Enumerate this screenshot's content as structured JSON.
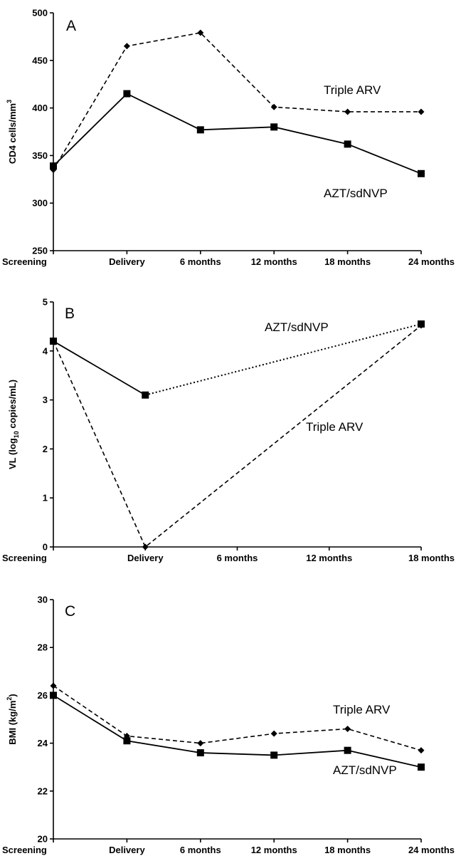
{
  "chart_data": [
    {
      "type": "line",
      "panel_label": "A",
      "ylabel": "CD4 cells/mm",
      "ylabel_sup": "3",
      "xlabel": "",
      "categories": [
        "Screening",
        "Delivery",
        "6 months",
        "12 months",
        "18 months",
        "24 months"
      ],
      "ylim": [
        250,
        500
      ],
      "yticks": [
        250,
        300,
        350,
        400,
        450,
        500
      ],
      "grid": false,
      "series": [
        {
          "name": "Triple ARV",
          "marker": "diamond",
          "line_style": "dashed",
          "values": [
            335,
            465,
            479,
            401,
            396,
            396
          ]
        },
        {
          "name": "AZT/sdNVP",
          "marker": "square",
          "line_style": "solid",
          "values": [
            339,
            415,
            377,
            380,
            362,
            331
          ]
        }
      ]
    },
    {
      "type": "line",
      "panel_label": "B",
      "ylabel_prefix": "VL (log",
      "ylabel_sub": "10",
      "ylabel_suffix": " copies/mL)",
      "xlabel": "",
      "categories": [
        "Screening",
        "Delivery",
        "6 months",
        "12 months",
        "18 months"
      ],
      "ylim": [
        0,
        5
      ],
      "yticks": [
        0,
        1,
        2,
        3,
        4,
        5
      ],
      "grid": false,
      "series": [
        {
          "name": "AZT/sdNVP",
          "marker": "square",
          "line_style": "solid, dotted after Delivery",
          "values": [
            4.2,
            3.1,
            null,
            null,
            4.55
          ]
        },
        {
          "name": "Triple ARV",
          "marker": "diamond",
          "line_style": "dashed",
          "values": [
            4.2,
            0.0,
            null,
            null,
            4.52
          ]
        }
      ]
    },
    {
      "type": "line",
      "panel_label": "C",
      "ylabel_prefix": "BMI (kg/m",
      "ylabel_sup": "2",
      "ylabel_suffix": ")",
      "xlabel": "",
      "categories": [
        "Screening",
        "Delivery",
        "6 months",
        "12 months",
        "18 months",
        "24 months"
      ],
      "ylim": [
        20,
        30
      ],
      "yticks": [
        20,
        22,
        24,
        26,
        28,
        30
      ],
      "grid": false,
      "series": [
        {
          "name": "Triple ARV",
          "marker": "diamond",
          "line_style": "dashed",
          "values": [
            26.4,
            24.3,
            24.0,
            24.4,
            24.6,
            23.7
          ]
        },
        {
          "name": "AZT/sdNVP",
          "marker": "square",
          "line_style": "solid",
          "values": [
            26.0,
            24.1,
            23.6,
            23.5,
            23.7,
            23.0
          ]
        }
      ]
    }
  ]
}
